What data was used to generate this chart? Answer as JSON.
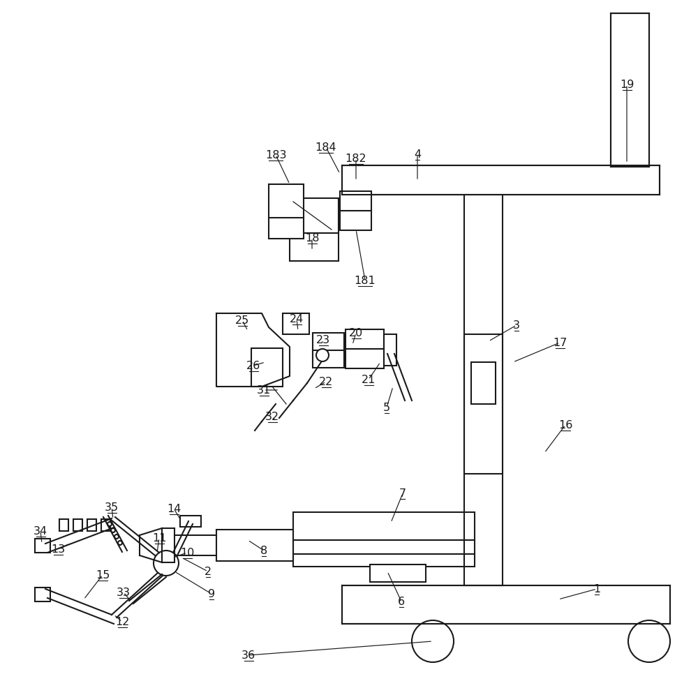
{
  "bg_color": "#ffffff",
  "line_color": "#1a1a1a",
  "lw": 1.5,
  "lw_thin": 0.9
}
